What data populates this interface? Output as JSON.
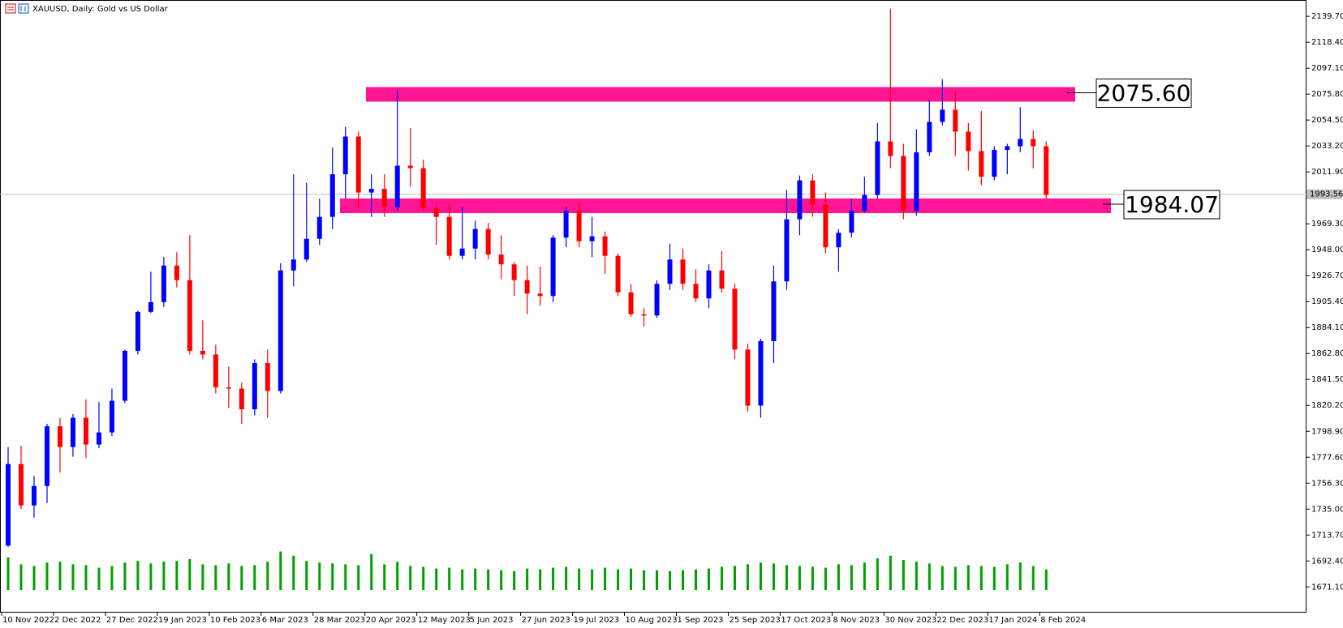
{
  "chart_data": {
    "type": "candlestick",
    "title": "XAUUSD, Daily:  Gold vs US Dollar",
    "categories": [
      "10 Nov 2022",
      null,
      null,
      null,
      "2 Dec 2022",
      null,
      null,
      null,
      "27 Dec 2022",
      null,
      null,
      null,
      "19 Jan 2023",
      null,
      null,
      null,
      "10 Feb 2023",
      null,
      null,
      null,
      "6 Mar 2023",
      null,
      null,
      null,
      "28 Mar 2023",
      null,
      null,
      null,
      "20 Apr 2023",
      null,
      null,
      null,
      "12 May 2023",
      null,
      null,
      null,
      "5 Jun 2023",
      null,
      null,
      null,
      "27 Jun 2023",
      null,
      null,
      null,
      "19 Jul 2023",
      null,
      null,
      null,
      "10 Aug 2023",
      null,
      null,
      null,
      "1 Sep 2023",
      null,
      null,
      null,
      "25 Sep 2023",
      null,
      null,
      null,
      "17 Oct 2023",
      null,
      null,
      null,
      "8 Nov 2023",
      null,
      null,
      null,
      "30 Nov 2023",
      null,
      null,
      null,
      "22 Dec 2023",
      null,
      null,
      null,
      "17 Jan 2024",
      null,
      null,
      null,
      "8 Feb 2024"
    ],
    "open": [
      1705,
      1772,
      1738,
      1754,
      1803,
      1786,
      1810,
      1788,
      1798,
      1824,
      1865,
      1897,
      1905,
      1935,
      1923,
      1865,
      1862,
      1835,
      1834,
      1817,
      1855,
      1832,
      1931,
      1940,
      1957,
      1975,
      2010,
      2041,
      1995,
      1998,
      1983,
      2017,
      2015,
      1982,
      1975,
      1943,
      1949,
      1965,
      1944,
      1936,
      1923,
      1912,
      1910,
      1958,
      1980,
      1955,
      1959,
      1943,
      1913,
      1895,
      1894,
      1920,
      1940,
      1920,
      1908,
      1931,
      1916,
      1866,
      1820,
      1873,
      1922,
      1973,
      2005,
      1985,
      1950,
      1962,
      1980,
      1993,
      2037,
      2025,
      1980,
      2028,
      2053,
      2063,
      2045,
      2029,
      2008,
      2030,
      2033,
      2039,
      2033
    ],
    "high": [
      1786,
      1787,
      1762,
      1805,
      1810,
      1813,
      1825,
      1823,
      1834,
      1866,
      1898,
      1930,
      1942,
      1946,
      1960,
      1890,
      1870,
      1852,
      1839,
      1858,
      1866,
      1937,
      2010,
      2003,
      1990,
      2032,
      2049,
      2045,
      2010,
      2010,
      2079,
      2048,
      2022,
      1985,
      1985,
      1983,
      1972,
      1970,
      1960,
      1938,
      1935,
      1934,
      1960,
      1983,
      1987,
      1975,
      1963,
      1945,
      1920,
      1900,
      1923,
      1953,
      1949,
      1932,
      1936,
      1947,
      1920,
      1871,
      1875,
      1935,
      1997,
      2009,
      2010,
      1995,
      1965,
      1990,
      2008,
      2052,
      2146,
      2035,
      2047,
      2071,
      2088,
      2078,
      2052,
      2062,
      2033,
      2035,
      2065,
      2046,
      2037
    ],
    "low": [
      1704,
      1735,
      1728,
      1740,
      1765,
      1778,
      1777,
      1785,
      1795,
      1822,
      1862,
      1896,
      1901,
      1917,
      1862,
      1858,
      1830,
      1818,
      1805,
      1812,
      1810,
      1830,
      1918,
      1938,
      1952,
      1965,
      1990,
      1982,
      1975,
      1975,
      1980,
      2000,
      1980,
      1952,
      1940,
      1940,
      1940,
      1940,
      1924,
      1910,
      1895,
      1902,
      1905,
      1950,
      1950,
      1942,
      1928,
      1910,
      1893,
      1885,
      1892,
      1915,
      1915,
      1905,
      1900,
      1913,
      1858,
      1815,
      1810,
      1855,
      1915,
      1960,
      1975,
      1945,
      1930,
      1958,
      1978,
      1990,
      2015,
      1973,
      1976,
      2025,
      2050,
      2025,
      2013,
      2001,
      2005,
      2010,
      2028,
      2015,
      1990
    ],
    "close": [
      1772,
      1738,
      1754,
      1803,
      1786,
      1810,
      1788,
      1798,
      1824,
      1865,
      1897,
      1905,
      1935,
      1923,
      1865,
      1862,
      1835,
      1834,
      1817,
      1855,
      1832,
      1931,
      1940,
      1957,
      1975,
      2010,
      2041,
      1995,
      1998,
      1983,
      2017,
      2015,
      1982,
      1975,
      1943,
      1949,
      1965,
      1944,
      1936,
      1923,
      1912,
      1910,
      1958,
      1980,
      1955,
      1959,
      1943,
      1913,
      1895,
      1894,
      1920,
      1940,
      1920,
      1908,
      1931,
      1916,
      1866,
      1820,
      1873,
      1922,
      1973,
      2005,
      1985,
      1950,
      1962,
      1980,
      1993,
      2037,
      2025,
      1980,
      2028,
      2053,
      2063,
      2045,
      2029,
      2008,
      2030,
      2033,
      2039,
      2033,
      1993
    ],
    "volume": [
      38,
      30,
      28,
      32,
      33,
      30,
      29,
      26,
      28,
      32,
      34,
      31,
      33,
      34,
      36,
      30,
      29,
      31,
      28,
      29,
      33,
      45,
      40,
      34,
      32,
      31,
      30,
      29,
      42,
      30,
      33,
      28,
      27,
      25,
      26,
      24,
      25,
      24,
      23,
      22,
      25,
      24,
      26,
      27,
      25,
      24,
      26,
      24,
      25,
      23,
      23,
      22,
      23,
      24,
      25,
      27,
      28,
      30,
      32,
      31,
      29,
      28,
      27,
      26,
      30,
      29,
      32,
      37,
      40,
      35,
      33,
      31,
      28,
      27,
      29,
      28,
      27,
      30,
      32,
      28,
      24
    ],
    "up_color": "#0000ff",
    "down_color": "#ff0000",
    "volume_color": "#00a000",
    "ylim": [
      1650.0,
      2153.1
    ],
    "yticks": [
      {
        "value": 2139.7,
        "label": "2139.70"
      },
      {
        "value": 2118.4,
        "label": "2118.40"
      },
      {
        "value": 2097.1,
        "label": "2097.10"
      },
      {
        "value": 2075.8,
        "label": "2075.80"
      },
      {
        "value": 2054.5,
        "label": "2054.50"
      },
      {
        "value": 2033.2,
        "label": "2033.20"
      },
      {
        "value": 2011.9,
        "label": "2011.90"
      },
      {
        "value": 1969.3,
        "label": "1969.30"
      },
      {
        "value": 1948,
        "label": "1948.00"
      },
      {
        "value": 1926.7,
        "label": "1926.70"
      },
      {
        "value": 1905.4,
        "label": "1905.40"
      },
      {
        "value": 1884.1,
        "label": "1884.10"
      },
      {
        "value": 1862.8,
        "label": "1862.80"
      },
      {
        "value": 1841.5,
        "label": "1841.50"
      },
      {
        "value": 1820.2,
        "label": "1820.20"
      },
      {
        "value": 1798.9,
        "label": "1798.90"
      },
      {
        "value": 1777.6,
        "label": "1777.60"
      },
      {
        "value": 1756.3,
        "label": "1756.30"
      },
      {
        "value": 1735,
        "label": "1735.00"
      },
      {
        "value": 1713.7,
        "label": "1713.70"
      },
      {
        "value": 1692.4,
        "label": "1692.40"
      },
      {
        "value": 1671.1,
        "label": "1671.10"
      }
    ],
    "last_price": 1993.56,
    "annotations": [
      {
        "value": 2075.6,
        "label": "2075.60",
        "color": "#ff1493"
      },
      {
        "value": 1984.07,
        "label": "1984.07",
        "color": "#ff1493"
      }
    ]
  }
}
